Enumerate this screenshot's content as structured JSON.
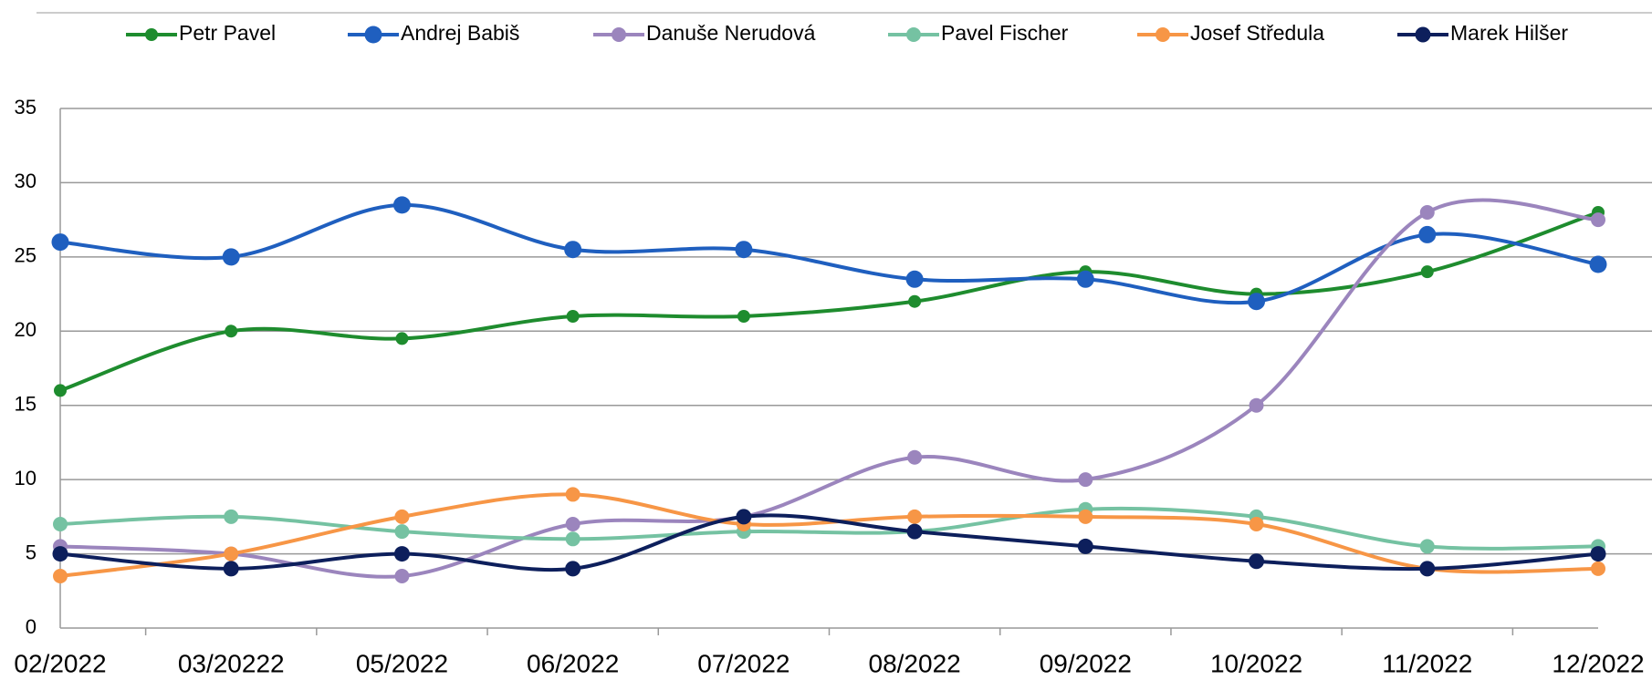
{
  "chart_data": {
    "type": "line",
    "categories": [
      "02/2022",
      "03/20222",
      "05/2022",
      "06/2022",
      "07/2022",
      "08/2022",
      "09/2022",
      "10/2022",
      "11/2022",
      "12/2022"
    ],
    "series": [
      {
        "name": "Petr Pavel",
        "color": "#1e8c2e",
        "values": [
          16,
          20,
          19.5,
          21,
          21,
          22,
          24,
          22.5,
          24,
          28
        ]
      },
      {
        "name": "Andrej Babiš",
        "color": "#1f5fbf",
        "values": [
          26,
          25,
          28.5,
          25.5,
          25.5,
          23.5,
          23.5,
          22,
          26.5,
          24.5
        ]
      },
      {
        "name": "Danuše Nerudová",
        "color": "#9b85bd",
        "values": [
          5.5,
          5,
          3.5,
          7,
          7.5,
          11.5,
          10,
          15,
          28,
          27.5
        ]
      },
      {
        "name": "Pavel Fischer",
        "color": "#75c2a2",
        "values": [
          7,
          7.5,
          6.5,
          6,
          6.5,
          6.5,
          8,
          7.5,
          5.5,
          5.5
        ]
      },
      {
        "name": "Josef Středula",
        "color": "#f79646",
        "values": [
          3.5,
          5,
          7.5,
          9,
          7,
          7.5,
          7.5,
          7,
          4,
          4
        ]
      },
      {
        "name": "Marek Hilšer",
        "color": "#0d1f5c",
        "values": [
          5,
          4,
          5,
          4,
          7.5,
          6.5,
          5.5,
          4.5,
          4,
          5
        ]
      }
    ],
    "ylim": [
      0,
      35
    ],
    "yticks": [
      0,
      5,
      10,
      15,
      20,
      25,
      30,
      35
    ],
    "grid": true,
    "legend": "top"
  }
}
